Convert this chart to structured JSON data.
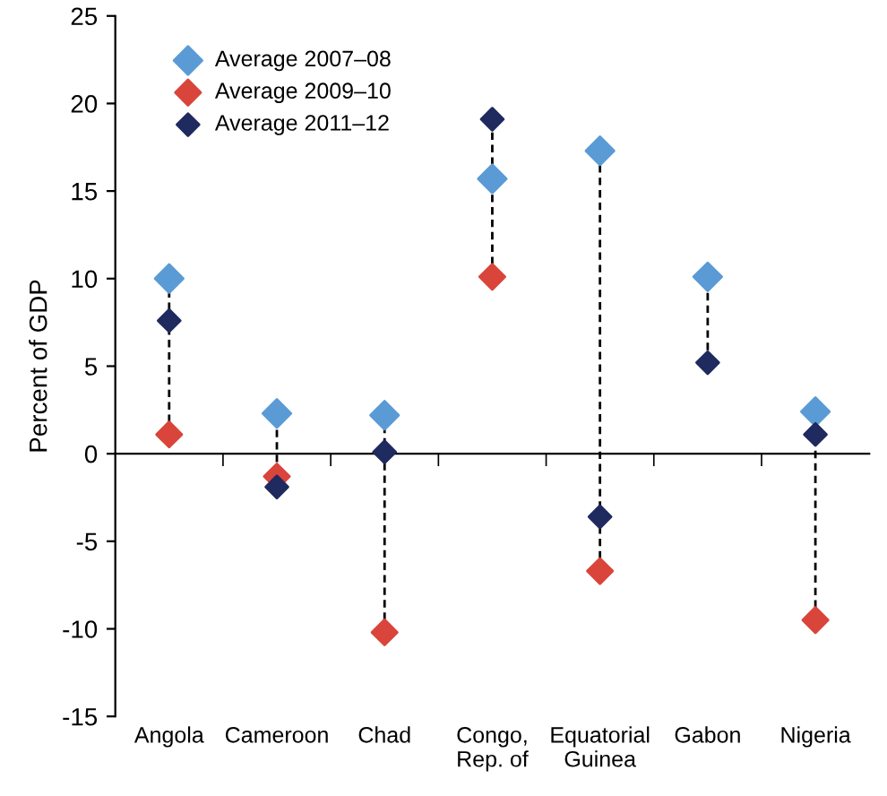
{
  "chart_data": {
    "type": "scatter",
    "ylabel": "Percent of GDP",
    "categories": [
      "Angola",
      "Cameroon",
      "Chad",
      "Congo,\nRep. of",
      "Equatorial\nGuinea",
      "Gabon",
      "Nigeria"
    ],
    "series": [
      {
        "name": "Average 2007–08",
        "color": "#5b9bd5",
        "values": [
          10.0,
          2.3,
          2.2,
          15.7,
          17.3,
          10.1,
          2.4
        ]
      },
      {
        "name": "Average 2009–10",
        "color": "#d9453b",
        "values": [
          1.1,
          -1.3,
          -10.2,
          10.1,
          -6.7,
          null,
          -9.5
        ]
      },
      {
        "name": "Average 2011–12",
        "color": "#1f2a5e",
        "values": [
          7.6,
          -1.9,
          0.1,
          19.1,
          -3.6,
          5.2,
          1.1
        ]
      }
    ],
    "ylim": [
      -15,
      25
    ],
    "yticks": [
      -15,
      -10,
      -5,
      0,
      5,
      10,
      15,
      20,
      25
    ],
    "marker": "diamond",
    "legend": "top left"
  }
}
